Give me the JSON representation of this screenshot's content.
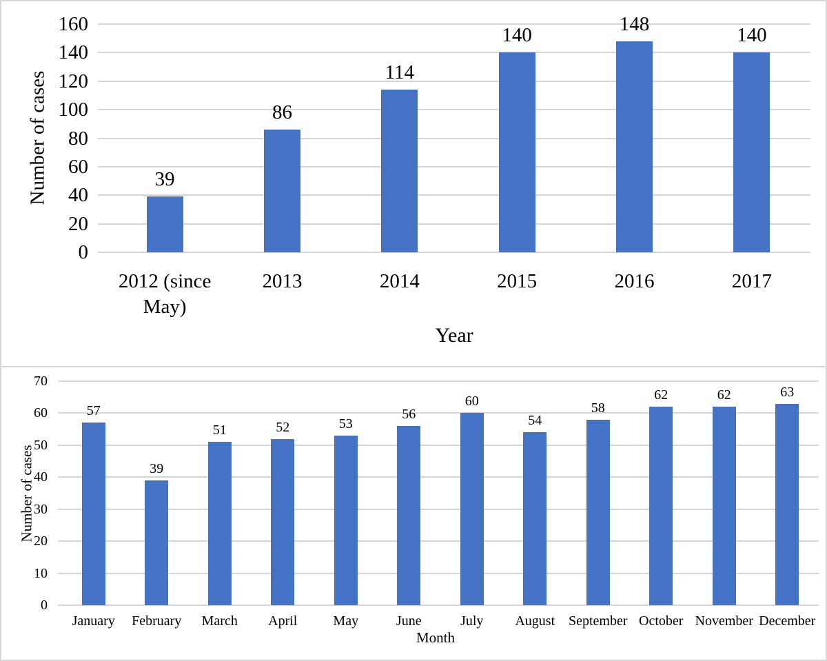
{
  "colors": {
    "bar": "#4472C4",
    "gridline": "#D6D6D6",
    "panel_border": "#D8D8D8",
    "text": "#000000"
  },
  "chart_data": [
    {
      "type": "bar",
      "title": "",
      "categories": [
        "2012 (since May)",
        "2013",
        "2014",
        "2015",
        "2016",
        "2017"
      ],
      "values": [
        39,
        86,
        114,
        140,
        148,
        140
      ],
      "data_labels": [
        "39",
        "86",
        "114",
        "140",
        "148",
        "140"
      ],
      "xlabel": "Year",
      "ylabel": "Number of cases",
      "ylim": [
        0,
        160
      ],
      "ytick_step": 20,
      "yticks": [
        0,
        20,
        40,
        60,
        80,
        100,
        120,
        140,
        160
      ],
      "grid": true,
      "legend": "none"
    },
    {
      "type": "bar",
      "title": "",
      "categories": [
        "January",
        "February",
        "March",
        "April",
        "May",
        "June",
        "July",
        "August",
        "September",
        "October",
        "November",
        "December"
      ],
      "values": [
        57,
        39,
        51,
        52,
        53,
        56,
        60,
        54,
        58,
        62,
        62,
        63
      ],
      "data_labels": [
        "57",
        "39",
        "51",
        "52",
        "53",
        "56",
        "60",
        "54",
        "58",
        "62",
        "62",
        "63"
      ],
      "xlabel": "Month",
      "ylabel": "Number of cases",
      "ylim": [
        0,
        70
      ],
      "ytick_step": 10,
      "yticks": [
        0,
        10,
        20,
        30,
        40,
        50,
        60,
        70
      ],
      "grid": true,
      "legend": "none"
    }
  ]
}
